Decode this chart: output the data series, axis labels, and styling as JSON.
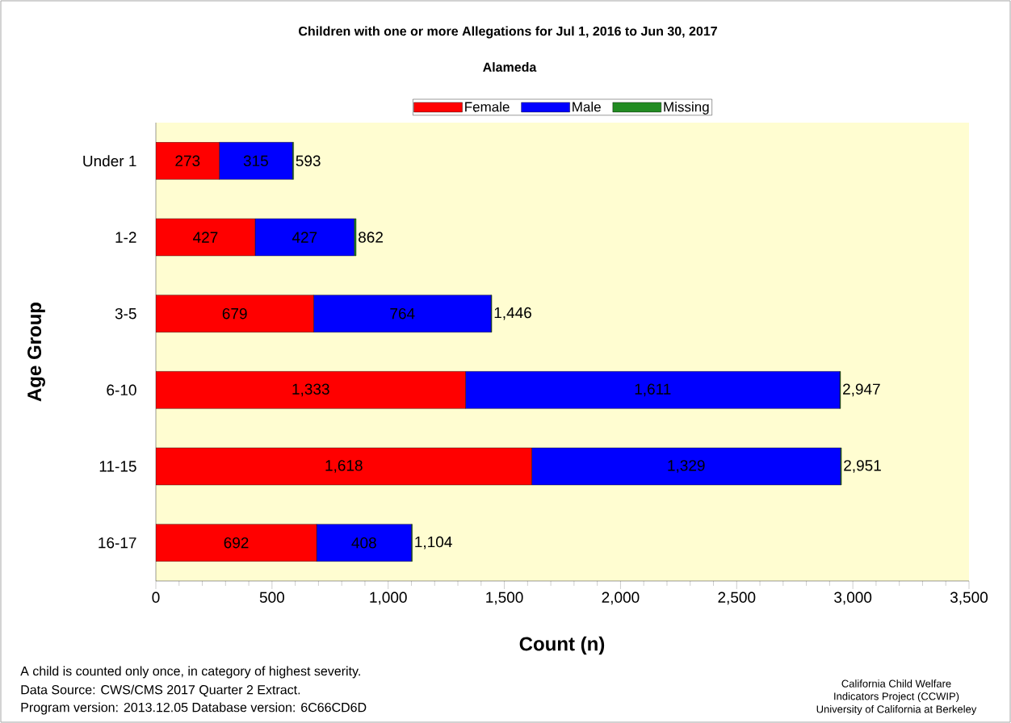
{
  "chart_data": {
    "type": "bar",
    "orientation": "horizontal",
    "stacked": true,
    "title": "Children with one or more Allegations for Jul 1, 2016 to Jun 30, 2017",
    "subtitle": "Alameda",
    "xlabel": "Count (n)",
    "ylabel": "Age Group",
    "categories": [
      "Under 1",
      "1-2",
      "3-5",
      "6-10",
      "11-15",
      "16-17"
    ],
    "series": [
      {
        "name": "Female",
        "color": "#ff0000",
        "values": [
          273,
          427,
          679,
          1333,
          1618,
          692
        ],
        "value_labels": [
          "273",
          "427",
          "679",
          "1,333",
          "1,618",
          "692"
        ]
      },
      {
        "name": "Male",
        "color": "#0000ff",
        "values": [
          315,
          427,
          764,
          1611,
          1329,
          408
        ],
        "value_labels": [
          "315",
          "427",
          "764",
          "1,611",
          "1,329",
          "408"
        ]
      },
      {
        "name": "Missing",
        "color": "#228b22",
        "values": [
          5,
          8,
          3,
          3,
          4,
          4
        ]
      }
    ],
    "totals": [
      "593",
      "862",
      "1,446",
      "2,947",
      "2,951",
      "1,104"
    ],
    "xlim": [
      0,
      3500
    ],
    "xticks": [
      0,
      500,
      {
        "value": 1000,
        "label": "1,000"
      },
      {
        "value": 1500,
        "label": "1,500"
      },
      {
        "value": 2000,
        "label": "2,000"
      },
      {
        "value": 2500,
        "label": "2,500"
      },
      {
        "value": 3000,
        "label": "3,000"
      },
      {
        "value": 3500,
        "label": "3,500"
      }
    ],
    "legend": "top",
    "annotations": [
      "A child is counted only once, in category of highest severity.",
      "Data Source: CWS/CMS 2017 Quarter 2 Extract.",
      "Program version: 2013.12.05 Database version: 6C66CD6D",
      "California Child Welfare",
      "Indicators Project (CCWIP)",
      "University of California at Berkeley"
    ]
  }
}
